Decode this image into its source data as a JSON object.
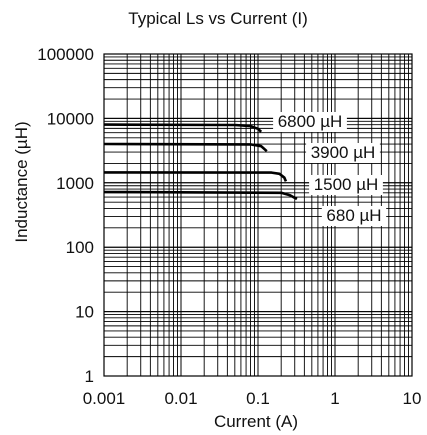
{
  "chart_data": {
    "type": "line",
    "title": "Typical Ls vs Current (I)",
    "xlabel": "Current (A)",
    "ylabel": "Inductance (µH)",
    "xscale": "log",
    "yscale": "log",
    "xlim": [
      0.001,
      10
    ],
    "ylim": [
      1,
      100000
    ],
    "grid": true,
    "x_ticks": [
      {
        "value": 0.001,
        "label": "0.001"
      },
      {
        "value": 0.01,
        "label": "0.01"
      },
      {
        "value": 0.1,
        "label": "0.1"
      },
      {
        "value": 1,
        "label": "1"
      },
      {
        "value": 10,
        "label": "10"
      }
    ],
    "y_ticks": [
      {
        "value": 1,
        "label": "1"
      },
      {
        "value": 10,
        "label": "10"
      },
      {
        "value": 100,
        "label": "100"
      },
      {
        "value": 1000,
        "label": "1000"
      },
      {
        "value": 10000,
        "label": "10000"
      },
      {
        "value": 100000,
        "label": "100000"
      }
    ],
    "series": [
      {
        "name": "6800 µH",
        "x": [
          0.001,
          0.05,
          0.08,
          0.1,
          0.11
        ],
        "y": [
          8000,
          7900,
          7600,
          6900,
          6200
        ]
      },
      {
        "name": "3900 µH",
        "x": [
          0.001,
          0.08,
          0.11,
          0.13
        ],
        "y": [
          4000,
          3950,
          3700,
          3100
        ]
      },
      {
        "name": "1500 µH",
        "x": [
          0.001,
          0.15,
          0.19,
          0.22,
          0.23
        ],
        "y": [
          1450,
          1440,
          1380,
          1200,
          1050
        ]
      },
      {
        "name": "680 µH",
        "x": [
          0.001,
          0.2,
          0.26,
          0.32
        ],
        "y": [
          720,
          700,
          640,
          560
        ]
      }
    ]
  }
}
